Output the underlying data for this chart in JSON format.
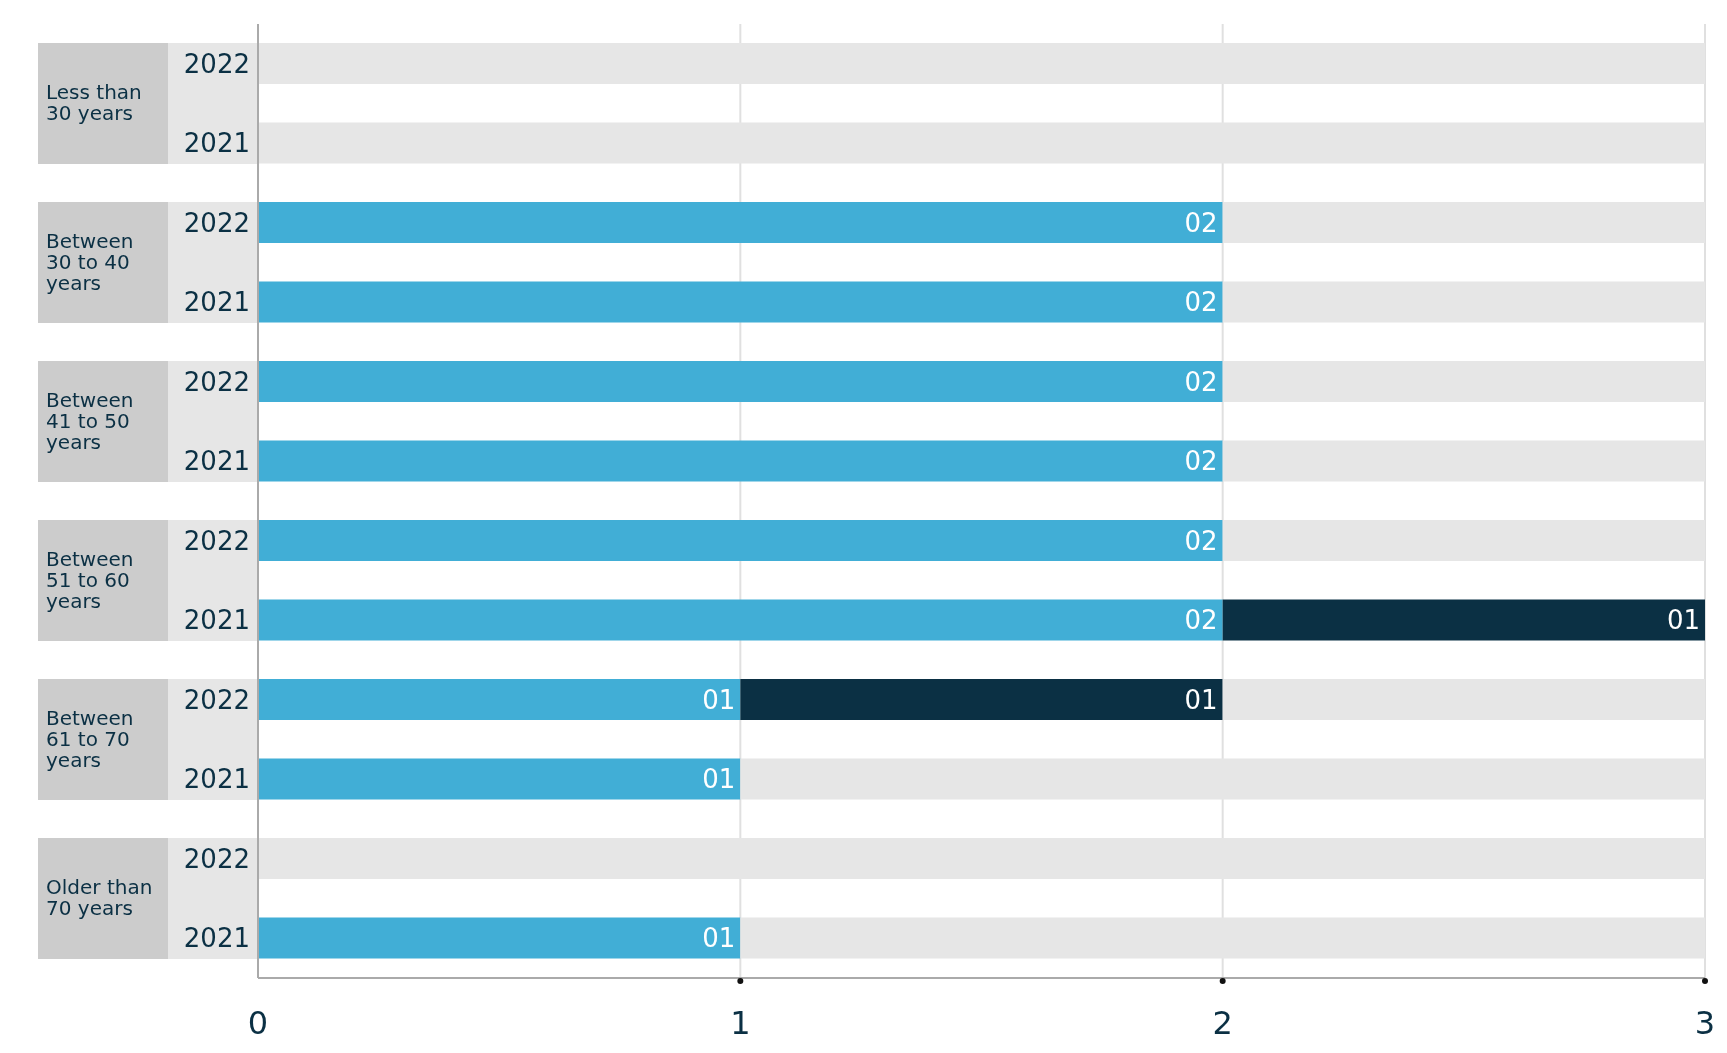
{
  "chart_data": {
    "type": "bar",
    "orientation": "horizontal",
    "stacked": true,
    "categories": [
      "2022",
      "2021",
      "2022",
      "2021",
      "2022",
      "2021",
      "2022",
      "2021",
      "2022",
      "2021",
      "2022",
      "2021"
    ],
    "series": [
      {
        "color": "#41aed6",
        "values": [
          null,
          null,
          2,
          2,
          2,
          2,
          2,
          2,
          1,
          1,
          null,
          1
        ],
        "value_labels": [
          null,
          null,
          "02",
          "02",
          "02",
          "02",
          "02",
          "02",
          "01",
          "01",
          null,
          "01"
        ]
      },
      {
        "color": "#0b3044",
        "values": [
          null,
          null,
          null,
          null,
          null,
          null,
          null,
          1,
          1,
          null,
          null,
          null
        ],
        "value_labels": [
          null,
          null,
          null,
          null,
          null,
          null,
          null,
          "01",
          "01",
          null,
          null,
          null
        ]
      },
      {
        "color": "#e6e6e6",
        "values": [
          3,
          3,
          1,
          1,
          1,
          1,
          1,
          null,
          1,
          2,
          3,
          2
        ]
      }
    ],
    "annotations": [
      "Less than 30 years",
      "Between 30 to 40 years",
      "Between 41 to 50 years",
      "Between 51 to 60 years",
      "Between 61 to 70 years",
      "Older than 70 years"
    ],
    "xlim": [
      0,
      3
    ],
    "xticks": [
      0,
      1,
      2,
      3
    ],
    "grid": "x"
  }
}
